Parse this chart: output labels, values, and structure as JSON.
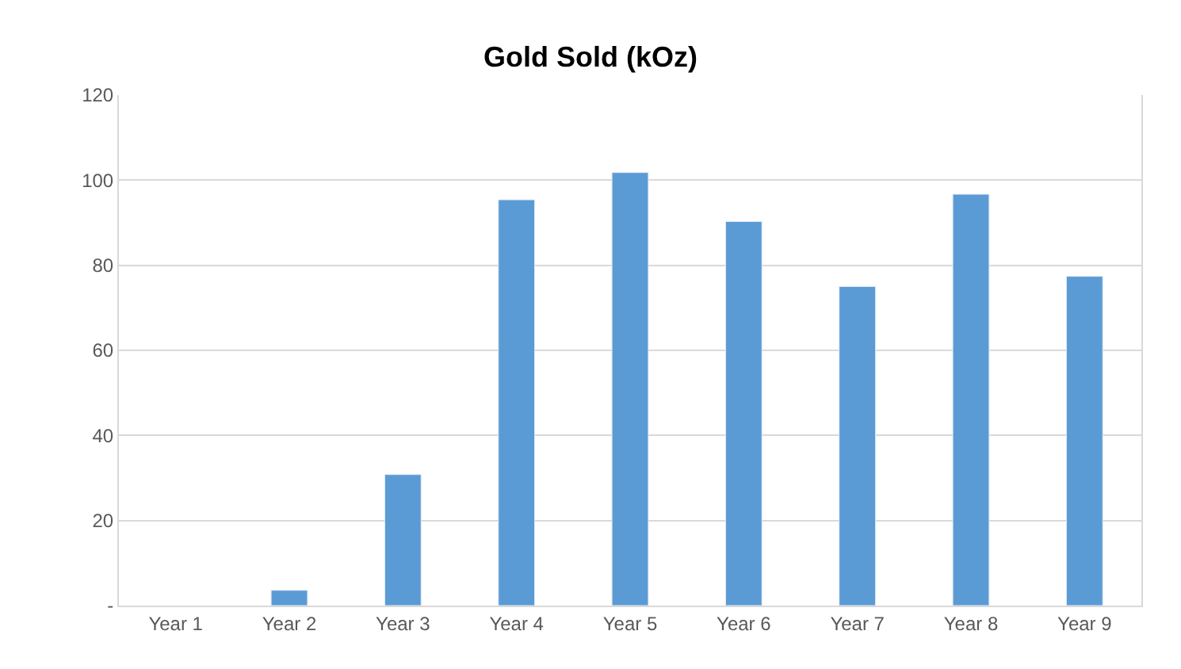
{
  "chart_data": {
    "type": "bar",
    "title": "Gold Sold (kOz)",
    "categories": [
      "Year 1",
      "Year 2",
      "Year 3",
      "Year 4",
      "Year 5",
      "Year 6",
      "Year 7",
      "Year 8",
      "Year 9"
    ],
    "values": [
      null,
      3.6,
      30.8,
      95.4,
      101.8,
      90.3,
      75.0,
      96.7,
      77.4
    ],
    "color": "#5b9bd5",
    "ylim": [
      0,
      120
    ],
    "yticks": [
      {
        "value": 0,
        "label": "-"
      },
      20,
      40,
      60,
      80,
      100,
      120
    ],
    "grid": "y"
  }
}
